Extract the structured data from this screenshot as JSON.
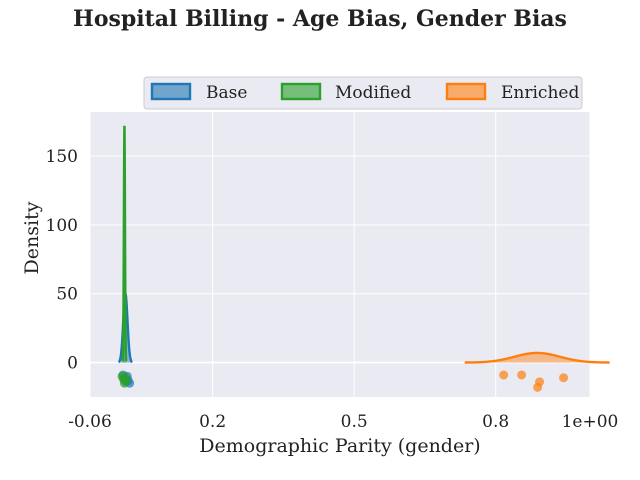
{
  "chart_data": {
    "type": "density",
    "title": "Hospital Billing - Age Bias, Gender Bias",
    "xlabel": "Demographic Parity (gender)",
    "ylabel": "Density",
    "xlim": [
      -0.06,
      1.0
    ],
    "ylim": [
      -25,
      182
    ],
    "x_ticks": [
      {
        "value": -0.06,
        "label": "-0.06"
      },
      {
        "value": 0.2,
        "label": "0.2"
      },
      {
        "value": 0.5,
        "label": "0.5"
      },
      {
        "value": 0.8,
        "label": "0.8"
      },
      {
        "value": 1.0,
        "label": "1e+00"
      }
    ],
    "y_ticks": [
      {
        "value": 0,
        "label": "0"
      },
      {
        "value": 50,
        "label": "50"
      },
      {
        "value": 100,
        "label": "100"
      },
      {
        "value": 150,
        "label": "150"
      }
    ],
    "grid": true,
    "legend_position": "top-right",
    "series": [
      {
        "name": "Base",
        "color": "#1f77b4",
        "kde_peak_x": 0.015,
        "kde_peak_y": 50,
        "kde_sigma": 0.0045,
        "points_x": [
          0.01,
          0.013,
          0.016,
          0.019,
          0.021,
          0.024
        ],
        "points_y": [
          -9,
          -12,
          -14,
          -10,
          -13,
          -15
        ]
      },
      {
        "name": "Modified",
        "color": "#2ca02c",
        "kde_peak_x": 0.013,
        "kde_peak_y": 172,
        "kde_sigma": 0.0012,
        "points_x": [
          0.008,
          0.011,
          0.013,
          0.015,
          0.017
        ],
        "points_y": [
          -10,
          -12,
          -15,
          -11,
          -13
        ]
      },
      {
        "name": "Enriched",
        "color": "#ff7f0e",
        "kde_peak_x": 0.888,
        "kde_peak_y": 7,
        "kde_sigma": 0.048,
        "points_x": [
          0.817,
          0.855,
          0.889,
          0.893,
          0.944
        ],
        "points_y": [
          -9,
          -9,
          -18,
          -14,
          -11
        ]
      }
    ]
  }
}
